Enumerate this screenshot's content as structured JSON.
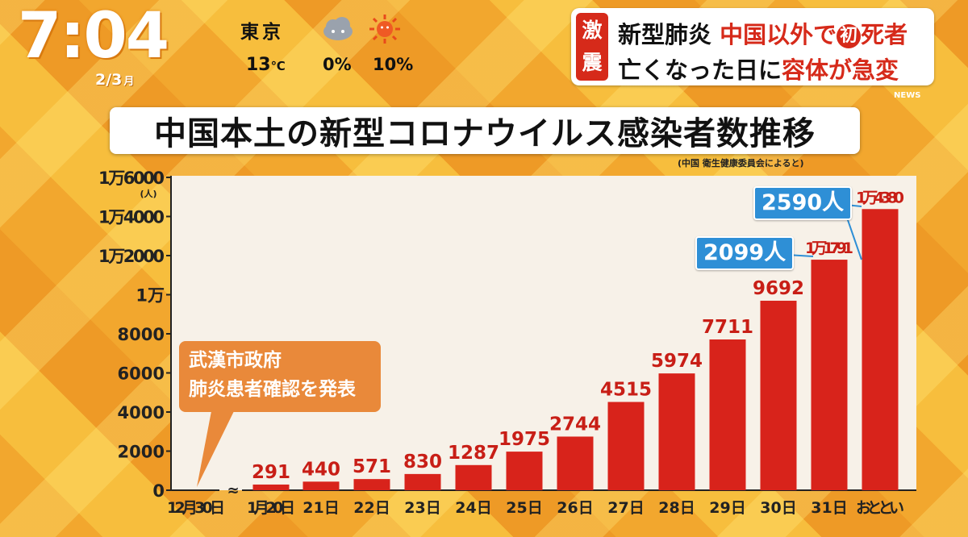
{
  "overlay": {
    "time": "7:04",
    "date": "2/3",
    "date_day": "月",
    "weather": {
      "city": "東京",
      "temperature": "13",
      "temperature_unit": "℃",
      "precip_am": "0%",
      "precip_pm": "10%",
      "icon_am": "cloud-icon",
      "icon_pm": "sun-icon"
    },
    "headline": {
      "tag": [
        "激",
        "震"
      ],
      "line1_a": "新型肺炎 ",
      "line1_b": "中国以外で",
      "line1_circle": "初",
      "line1_c": "死者",
      "line2_a": "亡くなった日に",
      "line2_b": "容体が急変",
      "news_label": "NEWS"
    }
  },
  "chart_data": {
    "type": "bar",
    "title": "中国本土の新型コロナウイルス感染者数推移",
    "source_note": "(中国 衛生健康委員会によると)",
    "ylabel": "(人)",
    "ylim": [
      0,
      16000
    ],
    "y_ticks": [
      {
        "value": 0,
        "label": "0"
      },
      {
        "value": 2000,
        "label": "2000"
      },
      {
        "value": 4000,
        "label": "4000"
      },
      {
        "value": 6000,
        "label": "6000"
      },
      {
        "value": 8000,
        "label": "8000"
      },
      {
        "value": 10000,
        "label": "1万"
      },
      {
        "value": 12000,
        "label": "1万2000"
      },
      {
        "value": 14000,
        "label": "1万4000"
      },
      {
        "value": 16000,
        "label": "1万6000"
      }
    ],
    "categories": [
      "12月30日",
      "1月20日",
      "21日",
      "22日",
      "23日",
      "24日",
      "25日",
      "26日",
      "27日",
      "28日",
      "29日",
      "30日",
      "31日",
      "おととい"
    ],
    "values": [
      0,
      291,
      440,
      571,
      830,
      1287,
      1975,
      2744,
      4515,
      5974,
      7711,
      9692,
      11791,
      14380
    ],
    "value_labels": [
      "",
      "291",
      "440",
      "571",
      "830",
      "1287",
      "1975",
      "2744",
      "4515",
      "5974",
      "7711",
      "9692",
      "1万1791",
      "1万4380"
    ],
    "axis_break": "≈",
    "bar_color": "#d8231b",
    "annotations": {
      "callout": [
        "武漢市政府",
        "肺炎患者確認を発表"
      ],
      "increase_1": "2099人",
      "increase_2": "2590人"
    }
  }
}
